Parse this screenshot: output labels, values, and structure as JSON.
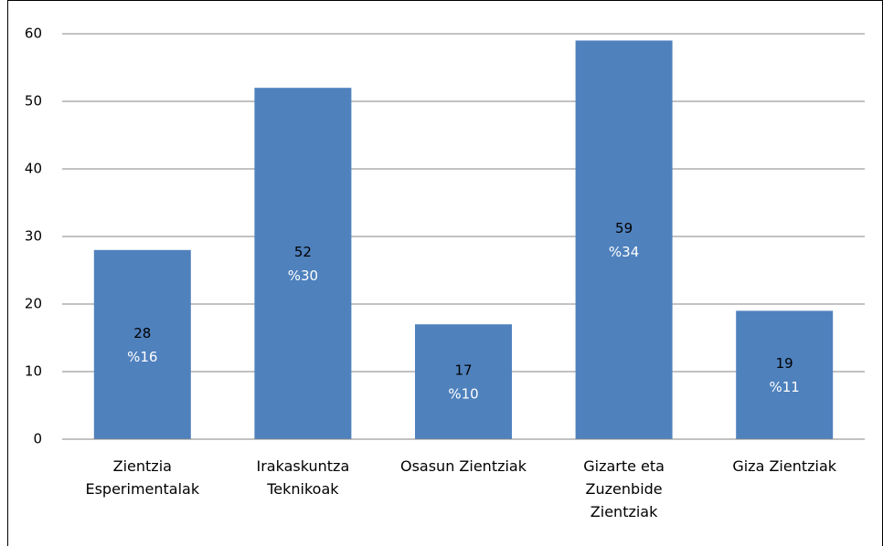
{
  "chart_data": {
    "type": "bar",
    "categories": [
      "Zientzia Esperimentalak",
      "Irakaskuntza Teknikoak",
      "Osasun Zientziak",
      "Gizarte eta Zuzenbide Zientziak",
      "Giza Zientziak"
    ],
    "values": [
      28,
      52,
      17,
      59,
      19
    ],
    "percent_labels": [
      "%16",
      "%30",
      "%10",
      "%34",
      "%11"
    ],
    "color": "#4f81bd",
    "ylim": [
      0,
      60
    ],
    "yticks": [
      0,
      10,
      20,
      30,
      40,
      50,
      60
    ],
    "grid": true
  }
}
